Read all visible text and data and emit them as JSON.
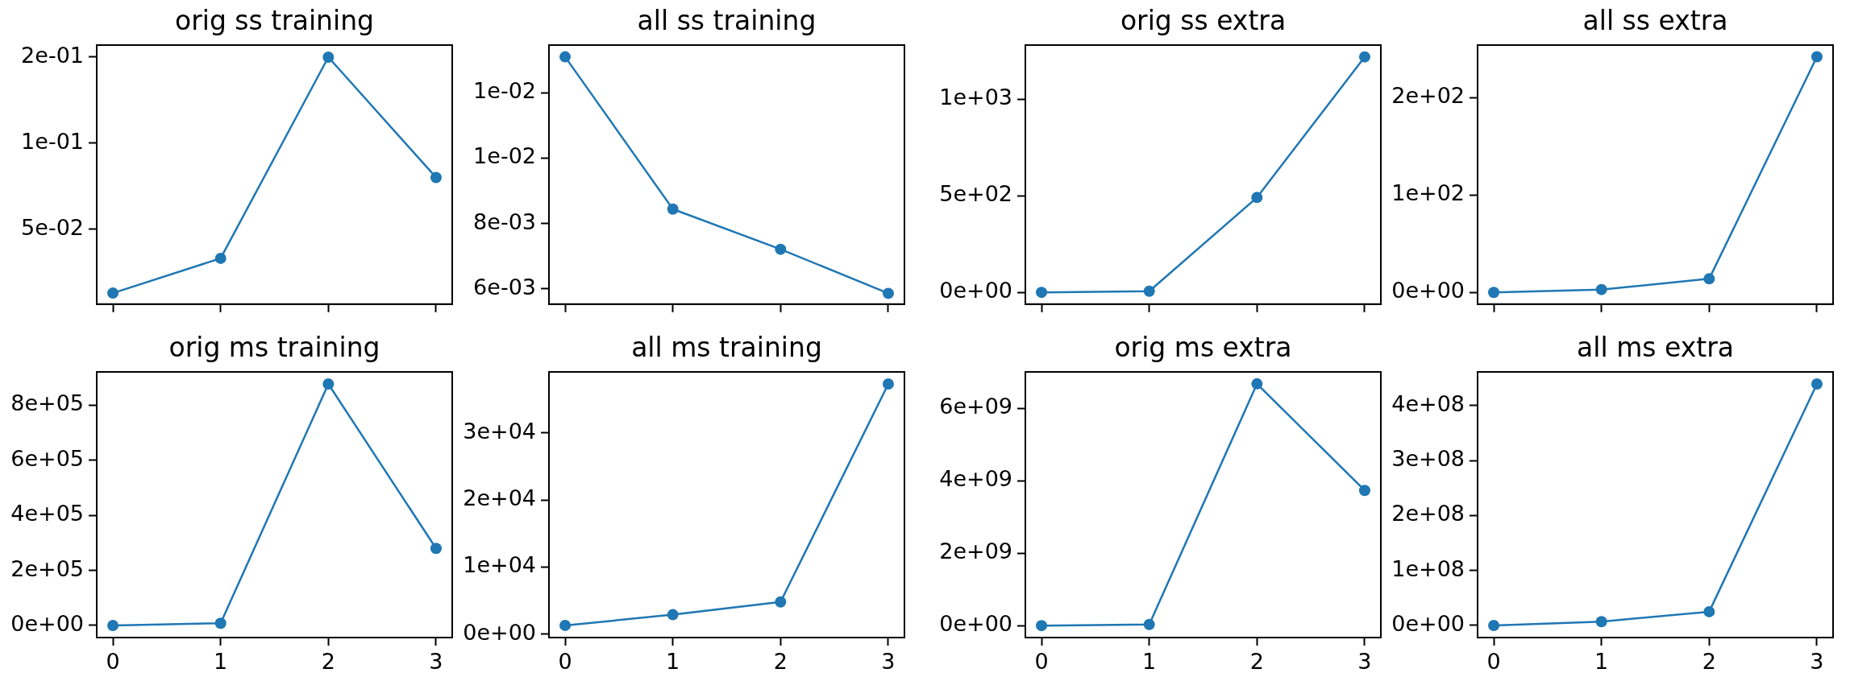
{
  "chart_data": [
    {
      "type": "line",
      "title": "orig ss training",
      "x": [
        0,
        1,
        2,
        3
      ],
      "values": [
        0.0129,
        0.0331,
        0.15,
        0.0801
      ],
      "color": "#1f77b4",
      "marker": "circle",
      "xlim": [
        -0.15,
        3.15
      ],
      "xticks": [
        0,
        1,
        2,
        3
      ],
      "ylim": [
        0.0065,
        0.157
      ],
      "yticks": [
        {
          "value": 0.05,
          "label": "5e-02"
        },
        {
          "value": 0.1,
          "label": "1e-01"
        },
        {
          "value": 0.15,
          "label": "2e-01"
        }
      ],
      "tick_labels": "y"
    },
    {
      "type": "line",
      "title": "all ss training",
      "x": [
        0,
        1,
        2,
        3
      ],
      "values": [
        0.0131,
        0.00844,
        0.00721,
        0.00586
      ],
      "color": "#1f77b4",
      "marker": "circle",
      "xlim": [
        -0.15,
        3.15
      ],
      "xticks": [
        0,
        1,
        2,
        3
      ],
      "ylim": [
        0.00553,
        0.01346
      ],
      "yticks": [
        {
          "value": 0.006,
          "label": "6e-03"
        },
        {
          "value": 0.008,
          "label": "8e-03"
        },
        {
          "value": 0.01,
          "label": "1e-02"
        },
        {
          "value": 0.012,
          "label": "1e-02"
        }
      ],
      "tick_labels": "y"
    },
    {
      "type": "line",
      "title": "orig ss extra",
      "x": [
        0,
        1,
        2,
        3
      ],
      "values": [
        0,
        6,
        491,
        1219
      ],
      "color": "#1f77b4",
      "marker": "circle",
      "xlim": [
        -0.15,
        3.15
      ],
      "xticks": [
        0,
        1,
        2,
        3
      ],
      "ylim": [
        -61,
        1280
      ],
      "yticks": [
        {
          "value": 0,
          "label": "0e+00"
        },
        {
          "value": 500,
          "label": "5e+02"
        },
        {
          "value": 1000,
          "label": "1e+03"
        }
      ],
      "tick_labels": "y"
    },
    {
      "type": "line",
      "title": "all ss extra",
      "x": [
        0,
        1,
        2,
        3
      ],
      "values": [
        0,
        3,
        14,
        242
      ],
      "color": "#1f77b4",
      "marker": "circle",
      "xlim": [
        -0.15,
        3.15
      ],
      "xticks": [
        0,
        1,
        2,
        3
      ],
      "ylim": [
        -12,
        254
      ],
      "yticks": [
        {
          "value": 0,
          "label": "0e+00"
        },
        {
          "value": 100,
          "label": "1e+02"
        },
        {
          "value": 200,
          "label": "2e+02"
        }
      ],
      "tick_labels": "y"
    },
    {
      "type": "line",
      "title": "orig ms training",
      "x": [
        0,
        1,
        2,
        3
      ],
      "values": [
        0,
        8000,
        877000,
        280000
      ],
      "color": "#1f77b4",
      "marker": "circle",
      "xlim": [
        -0.15,
        3.15
      ],
      "xticks": [
        0,
        1,
        2,
        3
      ],
      "ylim": [
        -44000,
        921000
      ],
      "yticks": [
        {
          "value": 0,
          "label": "0e+00"
        },
        {
          "value": 200000,
          "label": "2e+05"
        },
        {
          "value": 400000,
          "label": "4e+05"
        },
        {
          "value": 600000,
          "label": "6e+05"
        },
        {
          "value": 800000,
          "label": "8e+05"
        }
      ]
    },
    {
      "type": "line",
      "title": "all ms training",
      "x": [
        0,
        1,
        2,
        3
      ],
      "values": [
        1300,
        2900,
        4800,
        37300
      ],
      "color": "#1f77b4",
      "marker": "circle",
      "xlim": [
        -0.15,
        3.15
      ],
      "xticks": [
        0,
        1,
        2,
        3
      ],
      "ylim": [
        -510,
        39100
      ],
      "yticks": [
        {
          "value": 0,
          "label": "0e+00"
        },
        {
          "value": 10000,
          "label": "1e+04"
        },
        {
          "value": 20000,
          "label": "2e+04"
        },
        {
          "value": 30000,
          "label": "3e+04"
        }
      ]
    },
    {
      "type": "line",
      "title": "orig ms extra",
      "x": [
        0,
        1,
        2,
        3
      ],
      "values": [
        0,
        30000000,
        6670000000,
        3730000000
      ],
      "color": "#1f77b4",
      "marker": "circle",
      "xlim": [
        -0.15,
        3.15
      ],
      "xticks": [
        0,
        1,
        2,
        3
      ],
      "ylim": [
        -330000000,
        7000000000
      ],
      "yticks": [
        {
          "value": 0,
          "label": "0e+00"
        },
        {
          "value": 2000000000,
          "label": "2e+09"
        },
        {
          "value": 4000000000,
          "label": "4e+09"
        },
        {
          "value": 6000000000,
          "label": "6e+09"
        }
      ]
    },
    {
      "type": "line",
      "title": "all ms extra",
      "x": [
        0,
        1,
        2,
        3
      ],
      "values": [
        0,
        7000000,
        25000000,
        439000000
      ],
      "color": "#1f77b4",
      "marker": "circle",
      "xlim": [
        -0.15,
        3.15
      ],
      "xticks": [
        0,
        1,
        2,
        3
      ],
      "ylim": [
        -22000000,
        461000000
      ],
      "yticks": [
        {
          "value": 0,
          "label": "0e+00"
        },
        {
          "value": 100000000,
          "label": "1e+08"
        },
        {
          "value": 200000000,
          "label": "2e+08"
        },
        {
          "value": 300000000,
          "label": "3e+08"
        },
        {
          "value": 400000000,
          "label": "4e+08"
        }
      ]
    }
  ]
}
